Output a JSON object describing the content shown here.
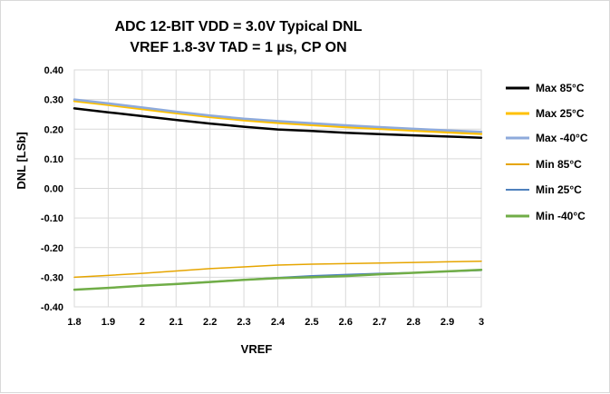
{
  "chart_data": {
    "type": "line",
    "title_line1": "ADC 12-BIT VDD = 3.0V Typical DNL",
    "title_line2": "VREF 1.8-3V TAD = 1 µs, CP ON",
    "xlabel": "VREF",
    "ylabel": "DNL [LSb]",
    "xlim": [
      1.8,
      3.0
    ],
    "ylim": [
      -0.4,
      0.4
    ],
    "x_ticks": [
      "1.8",
      "1.9",
      "2",
      "2.1",
      "2.2",
      "2.3",
      "2.4",
      "2.5",
      "2.6",
      "2.7",
      "2.8",
      "2.9",
      "3"
    ],
    "y_ticks": [
      "0.40",
      "0.30",
      "0.20",
      "0.10",
      "0.00",
      "-0.10",
      "-0.20",
      "-0.30",
      "-0.40"
    ],
    "grid": true,
    "legend_position": "right",
    "x": [
      1.8,
      1.9,
      2.0,
      2.1,
      2.2,
      2.3,
      2.4,
      2.5,
      2.6,
      2.7,
      2.8,
      2.9,
      3.0
    ],
    "series": [
      {
        "name": "Max  85°C",
        "color": "#000000",
        "width": 2.5,
        "values": [
          0.27,
          0.257,
          0.244,
          0.231,
          0.219,
          0.208,
          0.199,
          0.194,
          0.188,
          0.183,
          0.179,
          0.175,
          0.171
        ]
      },
      {
        "name": "Max 25°C",
        "color": "#ffc000",
        "width": 2.5,
        "values": [
          0.295,
          0.282,
          0.268,
          0.254,
          0.241,
          0.23,
          0.221,
          0.214,
          0.207,
          0.201,
          0.195,
          0.189,
          0.184
        ]
      },
      {
        "name": "Max -40°C",
        "color": "#8eaadb",
        "width": 2.5,
        "values": [
          0.3,
          0.287,
          0.273,
          0.259,
          0.246,
          0.235,
          0.227,
          0.22,
          0.213,
          0.207,
          0.201,
          0.196,
          0.191
        ]
      },
      {
        "name": "Min 85°C",
        "color": "#e6a500",
        "width": 1.5,
        "values": [
          -0.3,
          -0.294,
          -0.287,
          -0.279,
          -0.271,
          -0.265,
          -0.259,
          -0.256,
          -0.254,
          -0.252,
          -0.25,
          -0.248,
          -0.246
        ]
      },
      {
        "name": "Min 25°C",
        "color": "#4f81bd",
        "width": 1.5,
        "values": [
          -0.343,
          -0.336,
          -0.329,
          -0.322,
          -0.315,
          -0.308,
          -0.301,
          -0.295,
          -0.291,
          -0.287,
          -0.284,
          -0.281,
          -0.277
        ]
      },
      {
        "name": "Min -40°C",
        "color": "#70ad47",
        "width": 2.5,
        "values": [
          -0.342,
          -0.336,
          -0.329,
          -0.323,
          -0.316,
          -0.309,
          -0.303,
          -0.3,
          -0.296,
          -0.29,
          -0.285,
          -0.28,
          -0.275
        ]
      }
    ]
  }
}
